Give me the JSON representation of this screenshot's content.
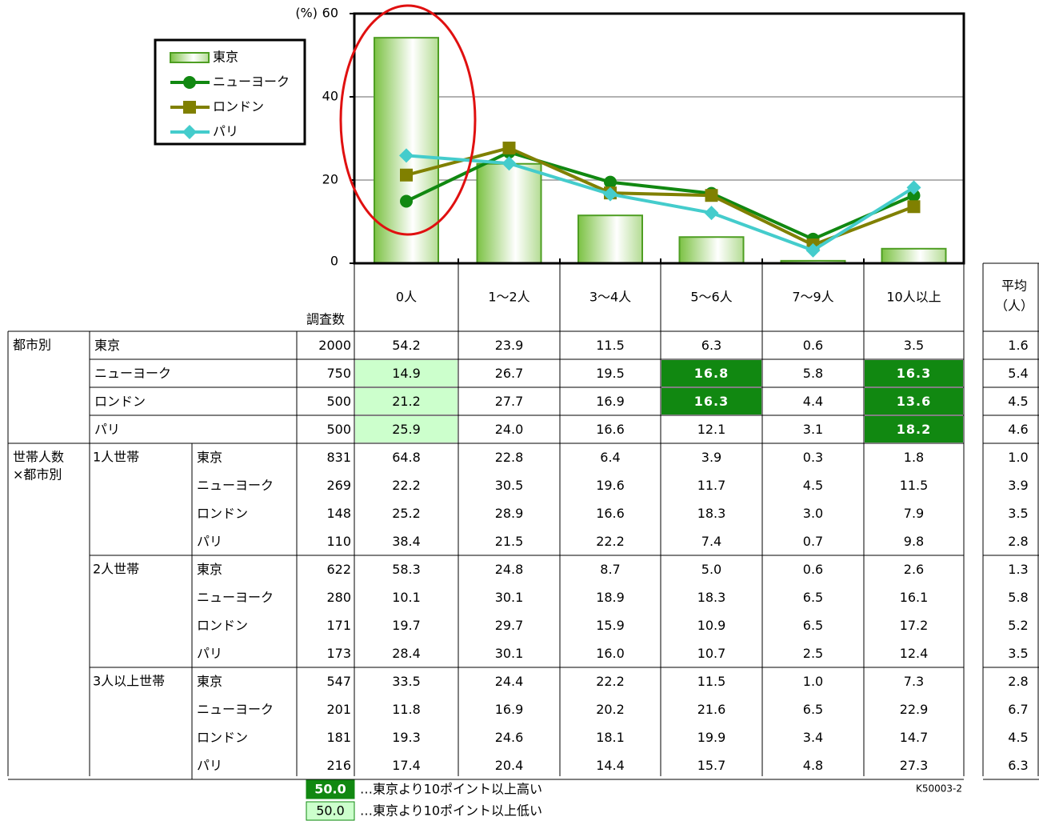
{
  "chart_data": {
    "type": "combo",
    "y_unit": "(%)",
    "ylim": [
      0,
      60
    ],
    "yticks": [
      0,
      20,
      40,
      60
    ],
    "grid": true,
    "categories": [
      "0人",
      "1〜2人",
      "3〜4人",
      "5〜6人",
      "7〜9人",
      "10人以上"
    ],
    "series": [
      {
        "name": "東京",
        "kind": "bar",
        "color": "#4e9e22",
        "values": [
          54.2,
          23.9,
          11.5,
          6.3,
          0.6,
          3.5
        ]
      },
      {
        "name": "ニューヨーク",
        "kind": "line",
        "marker": "circle",
        "color": "#118811",
        "values": [
          14.9,
          26.7,
          19.5,
          16.8,
          5.8,
          16.3
        ]
      },
      {
        "name": "ロンドン",
        "kind": "line",
        "marker": "square",
        "color": "#808000",
        "values": [
          21.2,
          27.7,
          16.9,
          16.3,
          4.4,
          13.6
        ]
      },
      {
        "name": "パリ",
        "kind": "line",
        "marker": "diamond",
        "color": "#44cccc",
        "values": [
          25.9,
          24.0,
          16.6,
          12.1,
          3.1,
          18.2
        ]
      }
    ]
  },
  "table": {
    "n_header": "調査数",
    "avg_header": [
      "平均",
      "（人）"
    ],
    "key": [
      {
        "sample": "50.0",
        "label": "…東京より10ポイント以上高い",
        "fill": "#118811",
        "text_color": "#ffffff"
      },
      {
        "sample": "50.0",
        "label": "…東京より10ポイント以上低い",
        "fill": "#ccffcc",
        "text_color": "#000000"
      }
    ],
    "sections": [
      {
        "label": [
          "都市別"
        ],
        "groups": [
          {
            "label": null,
            "rows": [
              {
                "label": "東京",
                "n": "2000",
                "values": [
                  "54.2",
                  "23.9",
                  "11.5",
                  "6.3",
                  "0.6",
                  "3.5"
                ],
                "avg": "1.6",
                "marks": [
                  null,
                  null,
                  null,
                  null,
                  null,
                  null
                ]
              },
              {
                "label": "ニューヨーク",
                "n": "750",
                "values": [
                  "14.9",
                  "26.7",
                  "19.5",
                  "16.8",
                  "5.8",
                  "16.3"
                ],
                "avg": "5.4",
                "marks": [
                  1,
                  null,
                  null,
                  0,
                  null,
                  0
                ]
              },
              {
                "label": "ロンドン",
                "n": "500",
                "values": [
                  "21.2",
                  "27.7",
                  "16.9",
                  "16.3",
                  "4.4",
                  "13.6"
                ],
                "avg": "4.5",
                "marks": [
                  1,
                  null,
                  null,
                  0,
                  null,
                  0
                ]
              },
              {
                "label": "パリ",
                "n": "500",
                "values": [
                  "25.9",
                  "24.0",
                  "16.6",
                  "12.1",
                  "3.1",
                  "18.2"
                ],
                "avg": "4.6",
                "marks": [
                  1,
                  null,
                  null,
                  null,
                  null,
                  0
                ]
              }
            ]
          }
        ]
      },
      {
        "label": [
          "世帯人数",
          "×都市別"
        ],
        "groups": [
          {
            "label": "1人世帯",
            "rows": [
              {
                "label": "東京",
                "n": "831",
                "values": [
                  "64.8",
                  "22.8",
                  "6.4",
                  "3.9",
                  "0.3",
                  "1.8"
                ],
                "avg": "1.0"
              },
              {
                "label": "ニューヨーク",
                "n": "269",
                "values": [
                  "22.2",
                  "30.5",
                  "19.6",
                  "11.7",
                  "4.5",
                  "11.5"
                ],
                "avg": "3.9"
              },
              {
                "label": "ロンドン",
                "n": "148",
                "values": [
                  "25.2",
                  "28.9",
                  "16.6",
                  "18.3",
                  "3.0",
                  "7.9"
                ],
                "avg": "3.5"
              },
              {
                "label": "パリ",
                "n": "110",
                "values": [
                  "38.4",
                  "21.5",
                  "22.2",
                  "7.4",
                  "0.7",
                  "9.8"
                ],
                "avg": "2.8"
              }
            ]
          },
          {
            "label": "2人世帯",
            "rows": [
              {
                "label": "東京",
                "n": "622",
                "values": [
                  "58.3",
                  "24.8",
                  "8.7",
                  "5.0",
                  "0.6",
                  "2.6"
                ],
                "avg": "1.3"
              },
              {
                "label": "ニューヨーク",
                "n": "280",
                "values": [
                  "10.1",
                  "30.1",
                  "18.9",
                  "18.3",
                  "6.5",
                  "16.1"
                ],
                "avg": "5.8"
              },
              {
                "label": "ロンドン",
                "n": "171",
                "values": [
                  "19.7",
                  "29.7",
                  "15.9",
                  "10.9",
                  "6.5",
                  "17.2"
                ],
                "avg": "5.2"
              },
              {
                "label": "パリ",
                "n": "173",
                "values": [
                  "28.4",
                  "30.1",
                  "16.0",
                  "10.7",
                  "2.5",
                  "12.4"
                ],
                "avg": "3.5"
              }
            ]
          },
          {
            "label": "3人以上世帯",
            "rows": [
              {
                "label": "東京",
                "n": "547",
                "values": [
                  "33.5",
                  "24.4",
                  "22.2",
                  "11.5",
                  "1.0",
                  "7.3"
                ],
                "avg": "2.8"
              },
              {
                "label": "ニューヨーク",
                "n": "201",
                "values": [
                  "11.8",
                  "16.9",
                  "20.2",
                  "21.6",
                  "6.5",
                  "22.9"
                ],
                "avg": "6.7"
              },
              {
                "label": "ロンドン",
                "n": "181",
                "values": [
                  "19.3",
                  "24.6",
                  "18.1",
                  "19.9",
                  "3.4",
                  "14.7"
                ],
                "avg": "4.5"
              },
              {
                "label": "パリ",
                "n": "216",
                "values": [
                  "17.4",
                  "20.4",
                  "14.4",
                  "15.7",
                  "4.8",
                  "27.3"
                ],
                "avg": "6.3"
              }
            ]
          }
        ]
      }
    ]
  },
  "footer": "K50003-2"
}
